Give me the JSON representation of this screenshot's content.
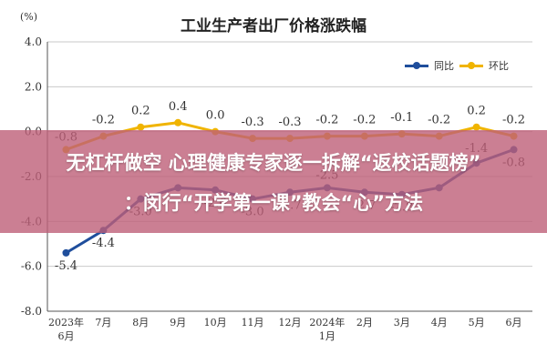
{
  "page": {
    "title": "工业生产者出厂价格涨跌幅",
    "y_unit": "(%)"
  },
  "legend": {
    "yoy": "同比",
    "mom": "环比"
  },
  "colors": {
    "yoy": "#1f4e9c",
    "mom": "#f0b400",
    "grid": "#c9c9c9",
    "axis": "#555555",
    "banner": "#be5f78"
  },
  "overlay": {
    "line1": "无杠杆做空 心理健康专家逐一拆解“返校话题榜”",
    "line2": "：闵行“开学第一课”教会“心”方法"
  },
  "chart_data": {
    "type": "line",
    "title": "工业生产者出厂价格涨跌幅",
    "ylabel": "(%)",
    "ylim": [
      -8.0,
      4.0
    ],
    "yticks": [
      "4.0",
      "2.0",
      "0.0",
      "-2.0",
      "-4.0",
      "-6.0",
      "-8.0"
    ],
    "categories": [
      "2023年6月",
      "7月",
      "8月",
      "9月",
      "10月",
      "11月",
      "12月",
      "2024年1月",
      "2月",
      "3月",
      "4月",
      "5月",
      "6月"
    ],
    "category_labels": [
      [
        "2023年",
        "6月"
      ],
      [
        "7月"
      ],
      [
        "8月"
      ],
      [
        "9月"
      ],
      [
        "10月"
      ],
      [
        "11月"
      ],
      [
        "12月"
      ],
      [
        "2024年",
        "1月"
      ],
      [
        "2月"
      ],
      [
        "3月"
      ],
      [
        "4月"
      ],
      [
        "5月"
      ],
      [
        "6月"
      ]
    ],
    "grid": true,
    "legend_position": "top-right",
    "series": [
      {
        "name": "同比",
        "values": [
          -5.4,
          -4.4,
          -3.0,
          -2.5,
          -2.6,
          -3.0,
          -2.7,
          -2.5,
          -2.7,
          -2.8,
          -2.5,
          -1.4,
          -0.8
        ],
        "labels": [
          "-5.4",
          "-4.4",
          "-3.0",
          "",
          "-2.6",
          "-3.0",
          "-2.7",
          "-2.5",
          "-2.7",
          "-2.8",
          "",
          "-1.4",
          "-0.8"
        ]
      },
      {
        "name": "环比",
        "values": [
          -0.8,
          -0.2,
          0.2,
          0.4,
          0.0,
          -0.3,
          -0.3,
          -0.2,
          -0.2,
          -0.1,
          -0.2,
          0.2,
          -0.2
        ],
        "labels": [
          "-0.8",
          "-0.2",
          "0.2",
          "0.4",
          "0.0",
          "-0.3",
          "-0.3",
          "-0.2",
          "-0.2",
          "-0.1",
          "-0.2",
          "0.2",
          "-0.2"
        ]
      }
    ]
  }
}
